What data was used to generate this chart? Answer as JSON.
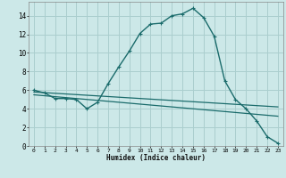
{
  "title": "",
  "xlabel": "Humidex (Indice chaleur)",
  "bg_color": "#cce8e8",
  "grid_color": "#aacece",
  "line_color": "#1a6b6b",
  "xlim": [
    -0.5,
    23.5
  ],
  "ylim": [
    0,
    15.5
  ],
  "xticks": [
    0,
    1,
    2,
    3,
    4,
    5,
    6,
    7,
    8,
    9,
    10,
    11,
    12,
    13,
    14,
    15,
    16,
    17,
    18,
    19,
    20,
    21,
    22,
    23
  ],
  "yticks": [
    0,
    2,
    4,
    6,
    8,
    10,
    12,
    14
  ],
  "curve1_x": [
    0,
    1,
    2,
    3,
    4,
    5,
    6,
    7,
    8,
    9,
    10,
    11,
    12,
    13,
    14,
    15,
    16,
    17,
    18,
    19,
    20,
    21,
    22,
    23
  ],
  "curve1_y": [
    6.0,
    5.7,
    5.1,
    5.1,
    5.0,
    4.0,
    4.7,
    6.7,
    8.5,
    10.2,
    12.1,
    13.1,
    13.2,
    14.0,
    14.2,
    14.8,
    13.8,
    11.8,
    7.0,
    5.0,
    4.0,
    2.7,
    1.0,
    0.3
  ],
  "curve2_x": [
    0,
    23
  ],
  "curve2_y": [
    5.8,
    4.2
  ],
  "curve3_x": [
    0,
    23
  ],
  "curve3_y": [
    5.5,
    3.2
  ]
}
